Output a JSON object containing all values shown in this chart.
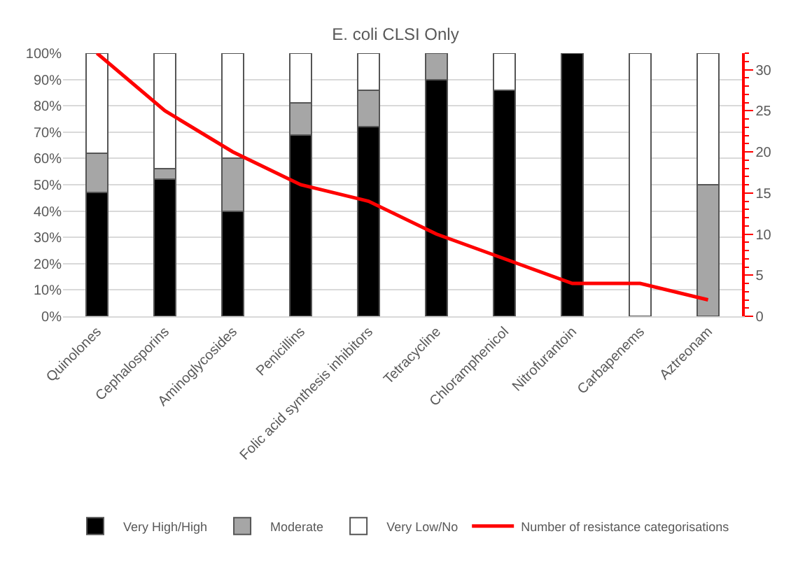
{
  "chart_data": {
    "type": "bar",
    "stacked": true,
    "title": "E. coli CLSI Only",
    "categories": [
      "Quinolones",
      "Cephalosporins",
      "Aminoglycosides",
      "Penicillins",
      "Folic acid synthesis inhibitors",
      "Tetracycline",
      "Chloramphenicol",
      "Nitrofurantoin",
      "Carbapenems",
      "Aztreonam"
    ],
    "series": [
      {
        "name": "Very High/High",
        "color": "#000000",
        "values": [
          47,
          52,
          40,
          69,
          72,
          90,
          86,
          100,
          0,
          0
        ]
      },
      {
        "name": "Moderate",
        "color": "#a6a6a6",
        "values": [
          15,
          4,
          20,
          12,
          14,
          10,
          0,
          0,
          0,
          50
        ]
      },
      {
        "name": "Very Low/No",
        "color": "#ffffff",
        "values": [
          38,
          44,
          40,
          19,
          14,
          0,
          14,
          0,
          100,
          50
        ]
      },
      {
        "name": "Number of resistance categorisations",
        "type": "line",
        "axis": "y2",
        "color": "#ff0000",
        "values": [
          32,
          25,
          20,
          16,
          14,
          10,
          7,
          4,
          4,
          2
        ]
      }
    ],
    "ylim": [
      0,
      100
    ],
    "yticks": [
      {
        "value": 0,
        "label": "0%"
      },
      {
        "value": 10,
        "label": "10%"
      },
      {
        "value": 20,
        "label": "20%"
      },
      {
        "value": 30,
        "label": "30%"
      },
      {
        "value": 40,
        "label": "40%"
      },
      {
        "value": 50,
        "label": "50%"
      },
      {
        "value": 60,
        "label": "60%"
      },
      {
        "value": 70,
        "label": "70%"
      },
      {
        "value": 80,
        "label": "80%"
      },
      {
        "value": 90,
        "label": "90%"
      },
      {
        "value": 100,
        "label": "100%"
      }
    ],
    "y2lim": [
      0,
      32
    ],
    "y2ticks": [
      0,
      5,
      10,
      15,
      20,
      25,
      30
    ],
    "grid": "y",
    "legend": "bottom",
    "marker": "none",
    "line_style": "solid"
  }
}
